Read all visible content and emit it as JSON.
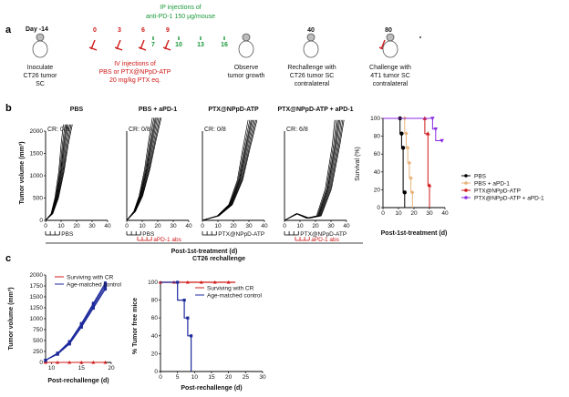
{
  "panels": [
    "a",
    "b",
    "c"
  ],
  "colors": {
    "red": "#d01818",
    "green": "#1a9a3a",
    "orange": "#e8b27a",
    "purple": "#8a2be2",
    "blue": "#1d2a9c",
    "black": "#000000"
  },
  "timeline": {
    "day_label": "Day -14",
    "ip_title_line1": "IP injections of",
    "ip_title_line2": "anti-PD-1 150 μg/mouse",
    "iv_days": [
      "0",
      "3",
      "6",
      "9"
    ],
    "ip_days": [
      "7",
      "10",
      "13",
      "16"
    ],
    "day40": "40",
    "day80": "80",
    "inoculate": [
      "Inoculate",
      "CT26 tumor",
      "SC"
    ],
    "iv": [
      "IV injections of",
      "PBS or PTX@NPpD-ATP",
      "20 mg/kg PTX eq."
    ],
    "observe": [
      "Observe",
      "tumor growth"
    ],
    "rechallenge": [
      "Rechallenge with",
      "CT26 tumor SC",
      "contralateral"
    ],
    "challenge": [
      "Challenge with",
      "4T1 tumor SC",
      "contralateral"
    ]
  },
  "b": {
    "y_axis_label": "Tumor volume (mm³)",
    "x_axis_label": "Post-1st-treatment (d)",
    "y_ticks": [
      "0",
      "500",
      "1000",
      "1500",
      "2000"
    ],
    "x_ticks": [
      "0",
      "10",
      "20",
      "30",
      "40"
    ],
    "groups": [
      {
        "title": "PBS",
        "cr": "CR: 0/8",
        "legend1": "PBS",
        "legend2": ""
      },
      {
        "title": "PBS + aPD-1",
        "cr": "CR: 0/8",
        "legend1": "PBS",
        "legend2": "aPD-1 abs"
      },
      {
        "title": "PTX@NPpD-ATP",
        "cr": "CR: 0/8",
        "legend1": "PTX@NPpD-ATP",
        "legend2": ""
      },
      {
        "title": "PTX@NPpD-ATP + aPD-1",
        "cr": "CR: 6/8",
        "legend1": "PTX@NPpD-ATP",
        "legend2": "aPD-1 abs"
      }
    ],
    "survival": {
      "y_label": "Survival (%)",
      "x_label": "Post-1st-treatment (d)",
      "y_ticks": [
        "0",
        "20",
        "40",
        "60",
        "80",
        "100"
      ],
      "x_ticks": [
        "0",
        "10",
        "20",
        "30",
        "40"
      ],
      "legend": [
        "PBS",
        "PBS + aPD-1",
        "PTX@NPpD-ATP",
        "PTX@NPpD-ATP + aPD-1"
      ]
    }
  },
  "c": {
    "title": "CT26 rechallenge",
    "vol_y_label": "Tumor volume (mm³)",
    "vol_x_label": "Post-rechallenge (d)",
    "vol_y_ticks": [
      "0",
      "250",
      "500",
      "750",
      "1000",
      "1250",
      "1500",
      "1750",
      "2000"
    ],
    "vol_x_ticks": [
      "10",
      "15",
      "20"
    ],
    "tf_y_label": "% Tumor free mice",
    "tf_x_label": "Post-rechallenge (d)",
    "tf_y_ticks": [
      "0",
      "20",
      "40",
      "60",
      "80",
      "100"
    ],
    "tf_x_ticks": [
      "0",
      "5",
      "10",
      "15",
      "20",
      "25",
      "30"
    ],
    "legend": [
      "Surviving with CR",
      "Age-matched control"
    ]
  },
  "chart_data": [
    {
      "type": "line",
      "title": "PBS",
      "xlabel": "Post-1st-treatment (d)",
      "ylabel": "Tumor volume (mm³)",
      "xlim": [
        0,
        40
      ],
      "ylim": [
        0,
        2000
      ],
      "series": [
        {
          "x": [
            0,
            4,
            7,
            10,
            12,
            14
          ],
          "values": [
            0,
            150,
            500,
            1100,
            1700,
            2150
          ]
        }
      ]
    },
    {
      "type": "line",
      "title": "PBS + aPD-1",
      "xlim": [
        0,
        40
      ],
      "ylim": [
        0,
        2000
      ],
      "series": [
        {
          "x": [
            0,
            5,
            9,
            13,
            16,
            19
          ],
          "values": [
            0,
            200,
            550,
            1150,
            1750,
            2300
          ]
        }
      ]
    },
    {
      "type": "line",
      "title": "PTX@NPpD-ATP",
      "xlim": [
        0,
        40
      ],
      "ylim": [
        0,
        2000
      ],
      "series": [
        {
          "x": [
            0,
            10,
            18,
            24,
            28,
            32
          ],
          "values": [
            0,
            100,
            350,
            900,
            1600,
            2250
          ]
        }
      ]
    },
    {
      "type": "line",
      "title": "PTX@NPpD-ATP + aPD-1",
      "xlim": [
        0,
        40
      ],
      "ylim": [
        0,
        2000
      ],
      "series": [
        {
          "x": [
            0,
            8,
            15,
            22,
            28,
            33,
            35
          ],
          "values": [
            0,
            150,
            50,
            100,
            700,
            1700,
            2250
          ]
        }
      ]
    },
    {
      "type": "line",
      "title": "Survival",
      "xlabel": "Post-1st-treatment (d)",
      "ylabel": "Survival (%)",
      "xlim": [
        0,
        40
      ],
      "ylim": [
        0,
        100
      ],
      "series": [
        {
          "name": "PBS",
          "x": [
            0,
            11,
            11,
            12,
            12,
            13,
            13,
            14,
            14
          ],
          "values": [
            100,
            100,
            83,
            83,
            67,
            67,
            17,
            17,
            0
          ]
        },
        {
          "name": "PBS + aPD-1",
          "x": [
            0,
            14,
            14,
            15,
            15,
            16,
            16,
            17,
            17,
            18,
            18,
            19,
            19
          ],
          "values": [
            100,
            100,
            83,
            83,
            67,
            67,
            50,
            50,
            33,
            33,
            17,
            17,
            0
          ]
        },
        {
          "name": "PTX@NPpD-ATP",
          "x": [
            0,
            27,
            27,
            29,
            29,
            30,
            30
          ],
          "values": [
            100,
            100,
            83,
            83,
            25,
            25,
            0
          ]
        },
        {
          "name": "PTX@NPpD-ATP + aPD-1",
          "x": [
            0,
            32,
            32,
            34,
            34,
            38
          ],
          "values": [
            100,
            100,
            88,
            88,
            75,
            75
          ]
        }
      ]
    },
    {
      "type": "line",
      "title": "CT26 rechallenge",
      "xlabel": "Post-rechallenge (d)",
      "ylabel": "Tumor volume (mm³)",
      "xlim": [
        9,
        20
      ],
      "ylim": [
        0,
        2000
      ],
      "series": [
        {
          "name": "Surviving with CR",
          "x": [
            9,
            11,
            13,
            15,
            17,
            19
          ],
          "values": [
            0,
            0,
            0,
            0,
            0,
            0
          ]
        },
        {
          "name": "Age-matched control",
          "x": [
            9,
            11,
            13,
            15,
            17,
            19
          ],
          "values": [
            50,
            200,
            450,
            850,
            1300,
            1750
          ]
        }
      ]
    },
    {
      "type": "line",
      "xlabel": "Post-rechallenge (d)",
      "ylabel": "% Tumor free mice",
      "xlim": [
        0,
        30
      ],
      "ylim": [
        0,
        100
      ],
      "series": [
        {
          "name": "Surviving with CR",
          "x": [
            0,
            22
          ],
          "values": [
            100,
            100
          ]
        },
        {
          "name": "Age-matched control",
          "x": [
            0,
            5,
            5,
            7,
            7,
            8,
            8,
            9,
            9
          ],
          "values": [
            100,
            100,
            80,
            80,
            60,
            60,
            40,
            40,
            0
          ]
        }
      ]
    }
  ]
}
